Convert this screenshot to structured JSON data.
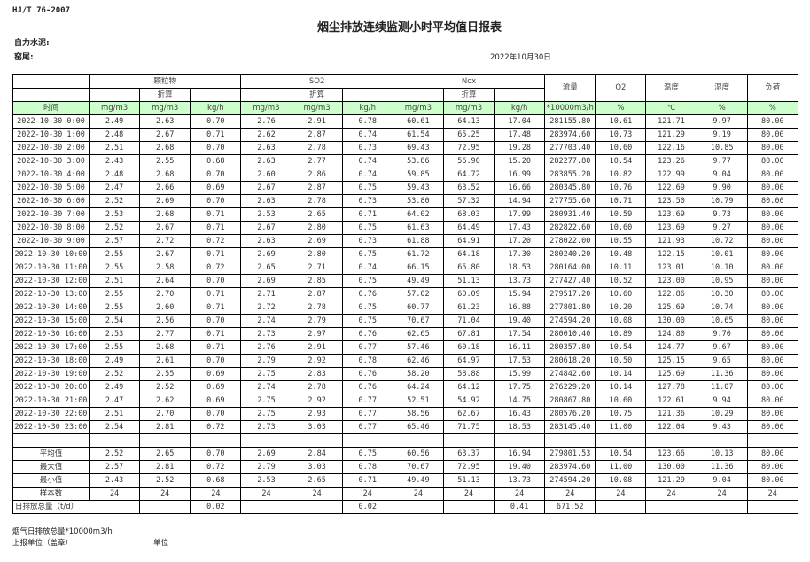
{
  "header": {
    "standard": "HJ/T  76-2007",
    "title": "烟尘排放连续监测小时平均值日报表",
    "company": "自力水泥:",
    "kiln": "窑尾:",
    "date": "2022年10月30日"
  },
  "table": {
    "groups": {
      "pm": "颗粒物",
      "so2": "SO2",
      "nox": "Nox",
      "flow": "流量",
      "o2": "O2",
      "temp": "温度",
      "humidity": "湿度",
      "load": "负荷"
    },
    "converted": "折算",
    "units": [
      "时间",
      "mg/m3",
      "mg/m3",
      "kg/h",
      "mg/m3",
      "mg/m3",
      "kg/h",
      "mg/m3",
      "mg/m3",
      "kg/h",
      "*10000m3/h",
      "%",
      "℃",
      "%",
      "%"
    ],
    "rows": [
      [
        "2022-10-30 0:00",
        "2.49",
        "2.63",
        "0.70",
        "2.76",
        "2.91",
        "0.78",
        "60.61",
        "64.13",
        "17.04",
        "281155.80",
        "10.61",
        "121.71",
        "9.97",
        "80.00"
      ],
      [
        "2022-10-30 1:00",
        "2.48",
        "2.67",
        "0.71",
        "2.62",
        "2.87",
        "0.74",
        "61.54",
        "65.25",
        "17.48",
        "283974.60",
        "10.73",
        "121.29",
        "9.19",
        "80.00"
      ],
      [
        "2022-10-30 2:00",
        "2.51",
        "2.68",
        "0.70",
        "2.63",
        "2.78",
        "0.73",
        "69.43",
        "72.95",
        "19.28",
        "277703.40",
        "10.60",
        "122.16",
        "10.85",
        "80.00"
      ],
      [
        "2022-10-30 3:00",
        "2.43",
        "2.55",
        "0.68",
        "2.63",
        "2.77",
        "0.74",
        "53.86",
        "56.90",
        "15.20",
        "282277.80",
        "10.54",
        "123.26",
        "9.77",
        "80.00"
      ],
      [
        "2022-10-30 4:00",
        "2.48",
        "2.68",
        "0.70",
        "2.60",
        "2.86",
        "0.74",
        "59.85",
        "64.72",
        "16.99",
        "283855.20",
        "10.82",
        "122.99",
        "9.04",
        "80.00"
      ],
      [
        "2022-10-30 5:00",
        "2.47",
        "2.66",
        "0.69",
        "2.67",
        "2.87",
        "0.75",
        "59.43",
        "63.52",
        "16.66",
        "280345.80",
        "10.76",
        "122.69",
        "9.90",
        "80.00"
      ],
      [
        "2022-10-30 6:00",
        "2.52",
        "2.69",
        "0.70",
        "2.63",
        "2.78",
        "0.73",
        "53.80",
        "57.32",
        "14.94",
        "277755.60",
        "10.71",
        "123.50",
        "10.79",
        "80.00"
      ],
      [
        "2022-10-30 7:00",
        "2.53",
        "2.68",
        "0.71",
        "2.53",
        "2.65",
        "0.71",
        "64.02",
        "68.03",
        "17.99",
        "280931.40",
        "10.59",
        "123.69",
        "9.73",
        "80.00"
      ],
      [
        "2022-10-30 8:00",
        "2.52",
        "2.67",
        "0.71",
        "2.67",
        "2.80",
        "0.75",
        "61.63",
        "64.49",
        "17.43",
        "282822.60",
        "10.60",
        "123.69",
        "9.27",
        "80.00"
      ],
      [
        "2022-10-30 9:00",
        "2.57",
        "2.72",
        "0.72",
        "2.63",
        "2.69",
        "0.73",
        "61.88",
        "64.91",
        "17.20",
        "278022.00",
        "10.55",
        "121.93",
        "10.72",
        "80.00"
      ],
      [
        "2022-10-30 10:00",
        "2.55",
        "2.67",
        "0.71",
        "2.69",
        "2.80",
        "0.75",
        "61.72",
        "64.18",
        "17.30",
        "280240.20",
        "10.48",
        "122.15",
        "10.01",
        "80.00"
      ],
      [
        "2022-10-30 11:00",
        "2.55",
        "2.58",
        "0.72",
        "2.65",
        "2.71",
        "0.74",
        "66.15",
        "65.80",
        "18.53",
        "280164.00",
        "10.11",
        "123.01",
        "10.10",
        "80.00"
      ],
      [
        "2022-10-30 12:00",
        "2.51",
        "2.64",
        "0.70",
        "2.69",
        "2.85",
        "0.75",
        "49.49",
        "51.13",
        "13.73",
        "277427.40",
        "10.52",
        "123.00",
        "10.95",
        "80.00"
      ],
      [
        "2022-10-30 13:00",
        "2.55",
        "2.70",
        "0.71",
        "2.71",
        "2.87",
        "0.76",
        "57.02",
        "60.09",
        "15.94",
        "279517.20",
        "10.60",
        "122.86",
        "10.30",
        "80.00"
      ],
      [
        "2022-10-30 14:00",
        "2.55",
        "2.60",
        "0.71",
        "2.72",
        "2.78",
        "0.75",
        "60.77",
        "61.23",
        "16.88",
        "277801.80",
        "10.20",
        "125.69",
        "10.74",
        "80.00"
      ],
      [
        "2022-10-30 15:00",
        "2.54",
        "2.56",
        "0.70",
        "2.74",
        "2.79",
        "0.75",
        "70.67",
        "71.04",
        "19.40",
        "274594.20",
        "10.08",
        "130.00",
        "10.65",
        "80.00"
      ],
      [
        "2022-10-30 16:00",
        "2.53",
        "2.77",
        "0.71",
        "2.73",
        "2.97",
        "0.76",
        "62.65",
        "67.81",
        "17.54",
        "280010.40",
        "10.89",
        "124.80",
        "9.70",
        "80.00"
      ],
      [
        "2022-10-30 17:00",
        "2.55",
        "2.68",
        "0.71",
        "2.76",
        "2.91",
        "0.77",
        "57.46",
        "60.18",
        "16.11",
        "280357.80",
        "10.54",
        "124.77",
        "9.67",
        "80.00"
      ],
      [
        "2022-10-30 18:00",
        "2.49",
        "2.61",
        "0.70",
        "2.79",
        "2.92",
        "0.78",
        "62.46",
        "64.97",
        "17.53",
        "280618.20",
        "10.50",
        "125.15",
        "9.65",
        "80.00"
      ],
      [
        "2022-10-30 19:00",
        "2.52",
        "2.55",
        "0.69",
        "2.75",
        "2.83",
        "0.76",
        "58.20",
        "58.88",
        "15.99",
        "274842.60",
        "10.14",
        "125.69",
        "11.36",
        "80.00"
      ],
      [
        "2022-10-30 20:00",
        "2.49",
        "2.52",
        "0.69",
        "2.74",
        "2.78",
        "0.76",
        "64.24",
        "64.12",
        "17.75",
        "276229.20",
        "10.14",
        "127.78",
        "11.07",
        "80.00"
      ],
      [
        "2022-10-30 21:00",
        "2.47",
        "2.62",
        "0.69",
        "2.75",
        "2.92",
        "0.77",
        "52.51",
        "54.92",
        "14.75",
        "280867.80",
        "10.60",
        "122.61",
        "9.94",
        "80.00"
      ],
      [
        "2022-10-30 22:00",
        "2.51",
        "2.70",
        "0.70",
        "2.75",
        "2.93",
        "0.77",
        "58.56",
        "62.67",
        "16.43",
        "280576.20",
        "10.75",
        "121.36",
        "10.29",
        "80.00"
      ],
      [
        "2022-10-30 23:00",
        "2.54",
        "2.81",
        "0.72",
        "2.73",
        "3.03",
        "0.77",
        "65.46",
        "71.75",
        "18.53",
        "283145.40",
        "11.00",
        "122.04",
        "9.43",
        "80.00"
      ]
    ],
    "summary": [
      [
        "平均值",
        "2.52",
        "2.65",
        "0.70",
        "2.69",
        "2.84",
        "0.75",
        "60.56",
        "63.37",
        "16.94",
        "279801.53",
        "10.54",
        "123.66",
        "10.13",
        "80.00"
      ],
      [
        "最大值",
        "2.57",
        "2.81",
        "0.72",
        "2.79",
        "3.03",
        "0.78",
        "70.67",
        "72.95",
        "19.40",
        "283974.60",
        "11.00",
        "130.00",
        "11.36",
        "80.00"
      ],
      [
        "最小值",
        "2.43",
        "2.52",
        "0.68",
        "2.53",
        "2.65",
        "0.71",
        "49.49",
        "51.13",
        "13.73",
        "274594.20",
        "10.08",
        "121.29",
        "9.04",
        "80.00"
      ],
      [
        "样本数",
        "24",
        "24",
        "24",
        "24",
        "24",
        "24",
        "24",
        "24",
        "24",
        "24",
        "24",
        "24",
        "24",
        "24"
      ]
    ],
    "daily_total": {
      "label": "日排放总量（t/d）",
      "values": [
        "",
        "0.02",
        "",
        "",
        "0.02",
        "",
        "",
        "0.41",
        "671.52",
        "",
        "",
        "",
        ""
      ]
    },
    "header_bg": "#ccffcc"
  },
  "footer": {
    "flue_total": "烟气日排放总量*10000m3/h",
    "reporter": "上报单位（盖章）",
    "unit": "单位"
  }
}
